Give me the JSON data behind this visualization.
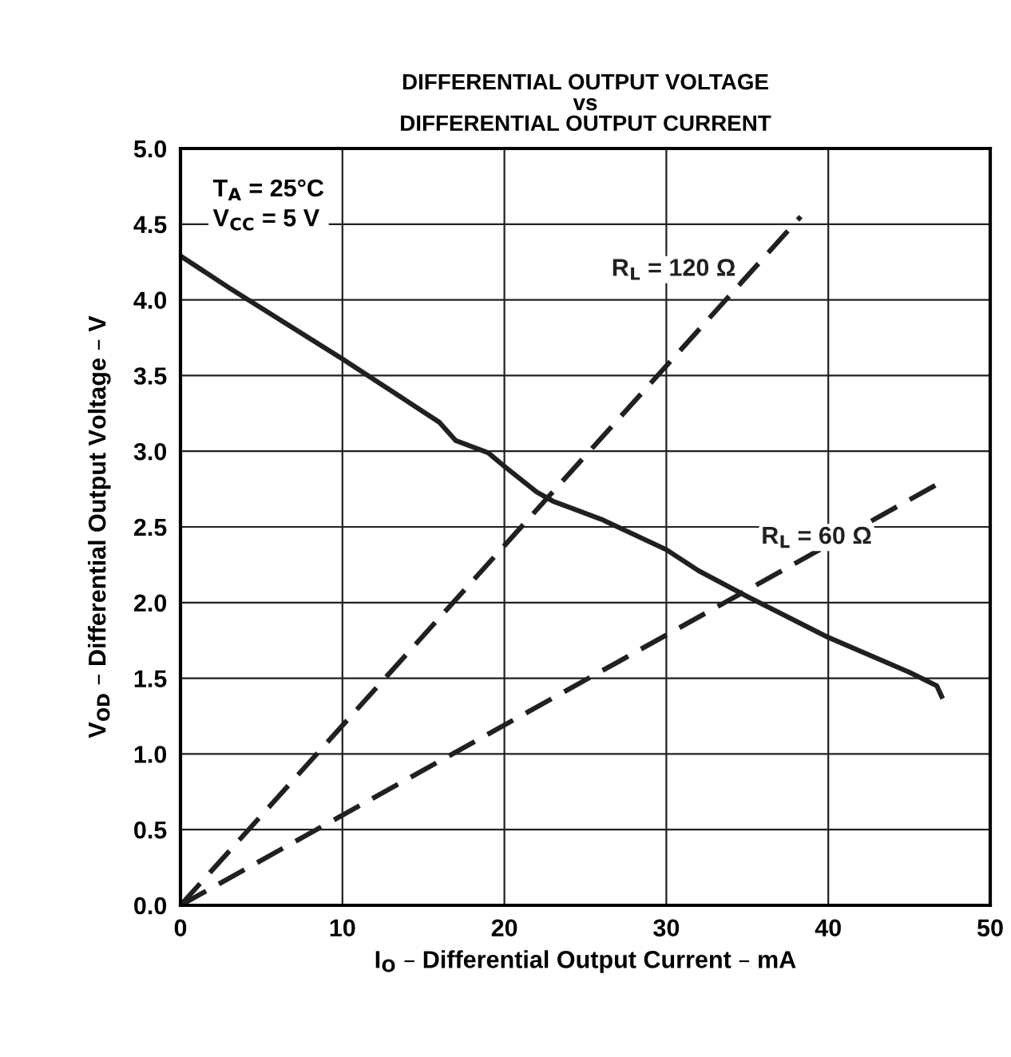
{
  "chart_data": {
    "type": "line",
    "title": "DIFFERENTIAL OUTPUT VOLTAGE\nvs\nDIFFERENTIAL OUTPUT CURRENT",
    "xlabel": "I$_{O}$ – Differential Output Current – mA",
    "ylabel": "V$_{OD}$ – Differential Output Voltage – V",
    "annotations": [
      "T$_{A}$ = 25°C\nV$_{CC}$ = 5 V"
    ],
    "xlim": [
      0,
      50
    ],
    "xticks": [
      0,
      10,
      20,
      30,
      40,
      50
    ],
    "ylim": [
      0,
      5
    ],
    "yticks": [
      {
        "value": 0,
        "label": "0.0"
      },
      {
        "value": 0.5,
        "label": "0.5"
      },
      {
        "value": 1,
        "label": "1.0"
      },
      {
        "value": 1.5,
        "label": "1.5"
      },
      {
        "value": 2,
        "label": "2.0"
      },
      {
        "value": 2.5,
        "label": "2.5"
      },
      {
        "value": 3,
        "label": "3.0"
      },
      {
        "value": 3.5,
        "label": "3.5"
      },
      {
        "value": 4,
        "label": "4.0"
      },
      {
        "value": 4.5,
        "label": "4.5"
      },
      {
        "value": 5,
        "label": "5.0"
      }
    ],
    "grid": true,
    "legend": false,
    "series": [
      {
        "color": "#231f20",
        "line_style": "solid",
        "x": [
          0,
          3,
          10,
          16,
          17,
          19,
          20,
          22,
          23,
          24,
          26,
          28,
          29,
          30,
          32,
          35,
          40,
          45,
          46.7,
          47
        ],
        "values": [
          4.29,
          4.08,
          3.61,
          3.19,
          3.07,
          2.99,
          2.9,
          2.73,
          2.67,
          2.63,
          2.55,
          2.45,
          2.4,
          2.35,
          2.21,
          2.04,
          1.77,
          1.54,
          1.45,
          1.38
        ]
      },
      {
        "name": "R$_{L}$ = 120 Ω",
        "color": "#231f20",
        "line_style": "dashed",
        "x": [
          0,
          38.3
        ],
        "values": [
          0,
          4.55
        ]
      },
      {
        "name": "R$_{L}$ = 60 Ω",
        "color": "#231f20",
        "line_style": "dashed",
        "x": [
          0,
          46.7
        ],
        "values": [
          0,
          2.78
        ]
      }
    ]
  }
}
